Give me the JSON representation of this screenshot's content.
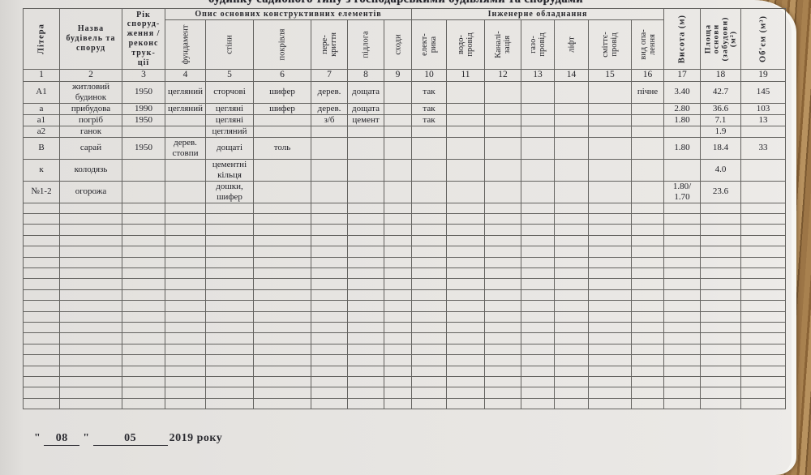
{
  "page": {
    "title_cutoff": "будинку садибного типу з господарськими будівлями та спорудами"
  },
  "table": {
    "group_headers": [
      {
        "label": "Опис основних конструктивних елементів"
      },
      {
        "label": "Інженерне обладнання"
      }
    ],
    "columns": [
      {
        "num": "1",
        "label": "Літера"
      },
      {
        "num": "2",
        "label": "Назва\nбудівель та\nспоруд"
      },
      {
        "num": "3",
        "label": "Рік\nспоруд-\nження /\nреконс\nтрук-\nції"
      },
      {
        "num": "4",
        "label": "фундамент"
      },
      {
        "num": "5",
        "label": "стіни"
      },
      {
        "num": "6",
        "label": "покрівля"
      },
      {
        "num": "7",
        "label": "пере-\nкриття"
      },
      {
        "num": "8",
        "label": "підлога"
      },
      {
        "num": "9",
        "label": "сходи"
      },
      {
        "num": "10",
        "label": "елект-\nрика"
      },
      {
        "num": "11",
        "label": "водо-\nпровід"
      },
      {
        "num": "12",
        "label": "Каналі-\nзація"
      },
      {
        "num": "13",
        "label": "газо-\nпровід"
      },
      {
        "num": "14",
        "label": "ліфт"
      },
      {
        "num": "15",
        "label": "сміттє-\nпровід"
      },
      {
        "num": "16",
        "label": "вид опа-\nлення"
      },
      {
        "num": "17",
        "label": "Висота (м)"
      },
      {
        "num": "18",
        "label": "Площа основи\n(забудови)\n(м²)"
      },
      {
        "num": "19",
        "label": "Об'єм  (м³)"
      }
    ],
    "rows": [
      {
        "cells": [
          "А1",
          "житловий\nбудинок",
          "1950",
          "цегляний",
          "сторчові",
          "шифер",
          "дерев.",
          "дощата",
          "",
          "так",
          "",
          "",
          "",
          "",
          "",
          "пічне",
          "3.40",
          "42.7",
          "145"
        ]
      },
      {
        "cells": [
          "а",
          "прибудова",
          "1990",
          "цегляний",
          "цегляні",
          "шифер",
          "дерев.",
          "дощата",
          "",
          "так",
          "",
          "",
          "",
          "",
          "",
          "",
          "2.80",
          "36.6",
          "103"
        ]
      },
      {
        "cells": [
          "а1",
          "погріб",
          "1950",
          "",
          "цегляні",
          "",
          "з/б",
          "цемент",
          "",
          "так",
          "",
          "",
          "",
          "",
          "",
          "",
          "1.80",
          "7.1",
          "13"
        ]
      },
      {
        "cells": [
          "а2",
          "ганок",
          "",
          "",
          "цегляний",
          "",
          "",
          "",
          "",
          "",
          "",
          "",
          "",
          "",
          "",
          "",
          "",
          "1.9",
          ""
        ]
      },
      {
        "cells": [
          "В",
          "сарай",
          "1950",
          "дерев.\nстовпи",
          "дощаті",
          "толь",
          "",
          "",
          "",
          "",
          "",
          "",
          "",
          "",
          "",
          "",
          "1.80",
          "18.4",
          "33"
        ]
      },
      {
        "cells": [
          "к",
          "колодязь",
          "",
          "",
          "цементні\nкільця",
          "",
          "",
          "",
          "",
          "",
          "",
          "",
          "",
          "",
          "",
          "",
          "",
          "4.0",
          ""
        ]
      },
      {
        "cells": [
          "№1-2",
          "огорожа",
          "",
          "",
          "дошки,\nшифер",
          "",
          "",
          "",
          "",
          "",
          "",
          "",
          "",
          "",
          "",
          "",
          "1.80/\n1.70",
          "23.6",
          ""
        ]
      }
    ],
    "empty_row_count": 19
  },
  "footer": {
    "open_quote": "\"",
    "day": "08",
    "close_quote": "\"",
    "month": "05",
    "year_text": "2019 року"
  }
}
